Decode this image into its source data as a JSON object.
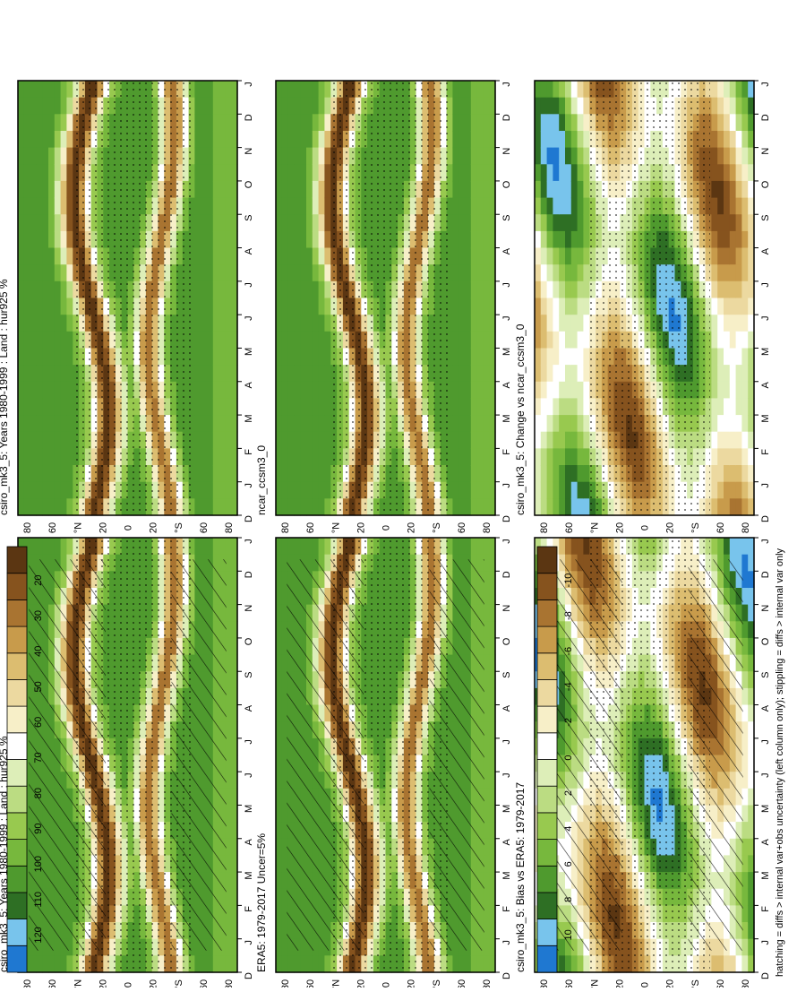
{
  "footer_caption": "hatching = diffs > internal var+obs uncertainty (left column only); stippling = diffs > internal var only",
  "month_labels": [
    "D",
    "J",
    "F",
    "M",
    "A",
    "M",
    "J",
    "J",
    "A",
    "S",
    "O",
    "N",
    "D",
    "J"
  ],
  "lat_labels": [
    "80",
    "60",
    "°N",
    "20",
    "0",
    "20",
    "°S",
    "60",
    "80"
  ],
  "colorbars": {
    "absolute": {
      "labels": [
        "120",
        "110",
        "100",
        "90",
        "80",
        "70",
        "60",
        "50",
        "40",
        "30",
        "20"
      ],
      "colors": [
        "#1f78d1",
        "#78c4ec",
        "#2e6f24",
        "#4f9a2e",
        "#77b83d",
        "#98c94f",
        "#bbdc82",
        "#ddeeb8",
        "#ffffff",
        "#f7efc8",
        "#ecd9a0",
        "#dcbd70",
        "#c89b4b",
        "#a97431",
        "#86531e",
        "#5b3612"
      ]
    },
    "difference": {
      "labels": [
        "10",
        "8",
        "6",
        "4",
        "2",
        "0",
        "-2",
        "-4",
        "-6",
        "-8",
        "-10"
      ],
      "colors": [
        "#1f78d1",
        "#78c4ec",
        "#2e6f24",
        "#4f9a2e",
        "#77b83d",
        "#98c94f",
        "#bbdc82",
        "#ddeeb8",
        "#ffffff",
        "#f7efc8",
        "#ecd9a0",
        "#dcbd70",
        "#c89b4b",
        "#a97431",
        "#86531e",
        "#5b3612"
      ]
    }
  },
  "chart_data": [
    {
      "type": "heatmap",
      "panel": "top-left",
      "title": "csiro_mk3_5: Years 1980-1999 : Land : hur925 %",
      "x": [
        "D",
        "J",
        "F",
        "M",
        "A",
        "M",
        "J",
        "J",
        "A",
        "S",
        "O",
        "N",
        "D",
        "J"
      ],
      "y": [
        80,
        60,
        40,
        20,
        0,
        -20,
        -40,
        -60,
        -80
      ],
      "colorbar": "absolute",
      "overlays": [
        "hatching",
        "stippling"
      ]
    },
    {
      "type": "heatmap",
      "panel": "top-right",
      "title": "csiro_mk3_5: Years 1980-1999 : Land : hur925 %",
      "x": [
        "D",
        "J",
        "F",
        "M",
        "A",
        "M",
        "J",
        "J",
        "A",
        "S",
        "O",
        "N",
        "D",
        "J"
      ],
      "y": [
        80,
        60,
        40,
        20,
        0,
        -20,
        -40,
        -60,
        -80
      ],
      "colorbar": "absolute",
      "overlays": [
        "stippling"
      ]
    },
    {
      "type": "heatmap",
      "panel": "middle-left",
      "title": "ERA5: 1979-2017 Uncer=5%",
      "x": [
        "D",
        "J",
        "F",
        "M",
        "A",
        "M",
        "J",
        "J",
        "A",
        "S",
        "O",
        "N",
        "D",
        "J"
      ],
      "y": [
        80,
        60,
        40,
        20,
        0,
        -20,
        -40,
        -60,
        -80
      ],
      "colorbar": "absolute",
      "overlays": [
        "hatching",
        "stippling"
      ]
    },
    {
      "type": "heatmap",
      "panel": "middle-right",
      "title": "ncar_ccsm3_0",
      "x": [
        "D",
        "J",
        "F",
        "M",
        "A",
        "M",
        "J",
        "J",
        "A",
        "S",
        "O",
        "N",
        "D",
        "J"
      ],
      "y": [
        80,
        60,
        40,
        20,
        0,
        -20,
        -40,
        -60,
        -80
      ],
      "colorbar": "absolute",
      "overlays": [
        "stippling"
      ]
    },
    {
      "type": "heatmap",
      "panel": "bottom-left",
      "title": "csiro_mk3_5: Bias vs ERA5: 1979-2017",
      "x": [
        "D",
        "J",
        "F",
        "M",
        "A",
        "M",
        "J",
        "J",
        "A",
        "S",
        "O",
        "N",
        "D",
        "J"
      ],
      "y": [
        80,
        60,
        40,
        20,
        0,
        -20,
        -40,
        -60,
        -80
      ],
      "colorbar": "difference",
      "overlays": [
        "hatching",
        "stippling"
      ]
    },
    {
      "type": "heatmap",
      "panel": "bottom-right",
      "title": "csiro_mk3_5: Change vs ncar_ccsm3_0",
      "x": [
        "D",
        "J",
        "F",
        "M",
        "A",
        "M",
        "J",
        "J",
        "A",
        "S",
        "O",
        "N",
        "D",
        "J"
      ],
      "y": [
        80,
        60,
        40,
        20,
        0,
        -20,
        -40,
        -60,
        -80
      ],
      "colorbar": "difference",
      "overlays": [
        "stippling"
      ]
    }
  ]
}
